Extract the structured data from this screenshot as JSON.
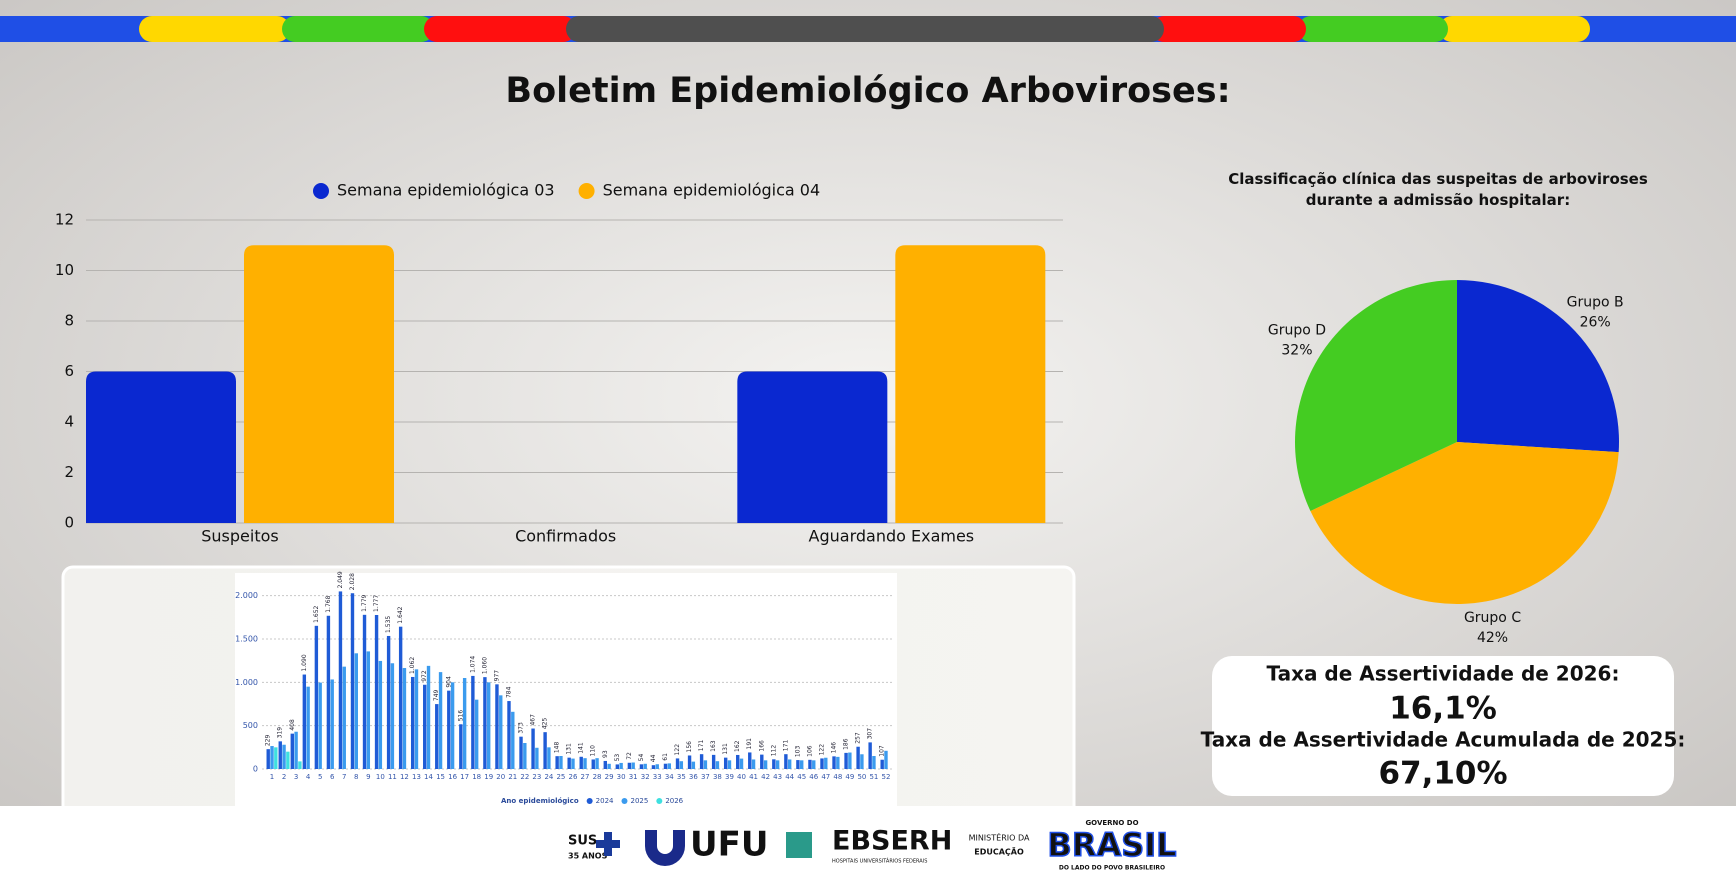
{
  "header": {
    "title": "Boletim Epidemiológico Arboviroses:"
  },
  "chart_data": [
    {
      "type": "bar",
      "categories": [
        "Suspeitos",
        "Confirmados",
        "Aguardando Exames"
      ],
      "series": [
        {
          "name": "Semana epidemiológica 03",
          "color": "#0a28d0",
          "values": [
            6,
            0,
            6
          ]
        },
        {
          "name": "Semana epidemiológica 04",
          "color": "#ffb000",
          "values": [
            11,
            0,
            11
          ]
        }
      ],
      "ylim": [
        0,
        12
      ],
      "yticks": [
        0,
        2,
        4,
        6,
        8,
        10,
        12
      ],
      "grid": true,
      "legend": "top"
    },
    {
      "type": "pie",
      "title": "Classificação clínica das suspeitas de arboviroses durante a admissão hospitalar:",
      "categories": [
        "Grupo B",
        "Grupo C",
        "Grupo D"
      ],
      "values": [
        26,
        42,
        32
      ],
      "value_labels": [
        "26%",
        "42%",
        "32%"
      ],
      "colors": [
        "#0a28d0",
        "#ffb000",
        "#44cc22"
      ]
    },
    {
      "type": "bar",
      "legend_title": "Ano epidemiológico",
      "categories": [
        "1",
        "2",
        "3",
        "4",
        "5",
        "6",
        "7",
        "8",
        "9",
        "10",
        "11",
        "12",
        "13",
        "14",
        "15",
        "16",
        "17",
        "18",
        "19",
        "20",
        "21",
        "22",
        "23",
        "24",
        "25",
        "26",
        "27",
        "28",
        "29",
        "30",
        "31",
        "32",
        "33",
        "34",
        "35",
        "36",
        "37",
        "38",
        "39",
        "40",
        "41",
        "42",
        "43",
        "44",
        "45",
        "46",
        "47",
        "48",
        "49",
        "50",
        "51",
        "52"
      ],
      "series": [
        {
          "name": "2024",
          "color": "#1f5bd6",
          "values": [
            229,
            319,
            408,
            1090,
            1652,
            1768,
            2049,
            2028,
            1779,
            1777,
            1535,
            1642,
            1062,
            972,
            749,
            904,
            516,
            1074,
            1060,
            977,
            784,
            373,
            467,
            425,
            148,
            131,
            141,
            110,
            93,
            53,
            72,
            54,
            44,
            61,
            122,
            156,
            171,
            163,
            131,
            162,
            191,
            166,
            112,
            171,
            103,
            106,
            122,
            146,
            186,
            257,
            307,
            107
          ],
          "value_labels": [
            "229",
            "319",
            "408",
            "1.090",
            "1.652",
            "1.768",
            "2.049",
            "2.028",
            "1.779",
            "1.777",
            "1.535",
            "1.642",
            "1.062",
            "972",
            "749",
            "904",
            "516",
            "1.074",
            "1.060",
            "977",
            "784",
            "373",
            "467",
            "425",
            "148",
            "131",
            "141",
            "110",
            "93",
            "53",
            "72",
            "54",
            "44",
            "61",
            "122",
            "156",
            "171",
            "163",
            "131",
            "162",
            "191",
            "166",
            "112",
            "171",
            "103",
            "106",
            "122",
            "146",
            "186",
            "257",
            "307",
            "107"
          ]
        },
        {
          "name": "2025",
          "color": "#3b9bee",
          "values": [
            265,
            280,
            430,
            950,
            997,
            1033,
            1181,
            1335,
            1357,
            1247,
            1220,
            1165,
            1150,
            1190,
            1118,
            1000,
            1050,
            800,
            1000,
            850,
            660,
            300,
            245,
            250,
            150,
            120,
            125,
            125,
            60,
            70,
            75,
            60,
            55,
            65,
            90,
            85,
            100,
            90,
            100,
            120,
            110,
            100,
            100,
            110,
            100,
            100,
            130,
            140,
            190,
            170,
            150,
            210
          ]
        },
        {
          "name": "2026",
          "color": "#3ee0e0",
          "values": [
            250,
            200,
            88,
            null,
            null,
            null,
            null,
            null,
            null,
            null,
            null,
            null,
            null,
            null,
            null,
            null,
            null,
            null,
            null,
            null,
            null,
            null,
            null,
            null,
            null,
            null,
            null,
            null,
            null,
            null,
            null,
            null,
            null,
            null,
            null,
            null,
            null,
            null,
            null,
            null,
            null,
            null,
            null,
            null,
            null,
            null,
            null,
            null,
            null,
            null,
            null,
            null
          ]
        }
      ],
      "ylim": [
        0,
        2100
      ],
      "yticks": [
        0,
        500,
        {
          "value": 1000,
          "label": "1.000"
        },
        {
          "value": 1500,
          "label": "1.500"
        },
        {
          "value": 2000,
          "label": "2.000"
        }
      ],
      "grid": true,
      "legend": "bottom"
    }
  ],
  "stats": {
    "label_2026": "Taxa de Assertividade de 2026:",
    "value_2026": "16,1%",
    "label_2025": "Taxa de Assertividade Acumulada de 2025:",
    "value_2025": "67,10%"
  },
  "footer": {
    "logos": [
      "SUS",
      "35 ANOS",
      "UFU",
      "EBSERH",
      "HOSPITAIS UNIVERSITÁRIOS FEDERAIS",
      "MINISTÉRIO DA",
      "EDUCAÇÃO",
      "GOVERNO DO",
      "BRASIL",
      "DO LADO DO POVO BRASILEIRO"
    ]
  }
}
